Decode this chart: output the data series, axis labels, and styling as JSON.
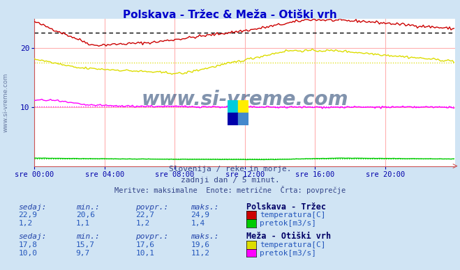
{
  "title": "Polskava - Tržec & Meža - Otiški vrh",
  "title_color": "#0000cc",
  "bg_color": "#d0e4f4",
  "plot_bg_color": "#ffffff",
  "grid_color_h": "#ffb0b0",
  "grid_color_v": "#ffb0b0",
  "x_label_color": "#0000aa",
  "watermark": "www.si-vreme.com",
  "watermark_color": "#1a3a6a",
  "subtitle1": "Slovenija / reke in morje.",
  "subtitle2": "zadnji dan / 5 minut.",
  "subtitle3": "Meritve: maksimalne  Enote: metrične  Črta: povprečje",
  "n_points": 288,
  "x_ticks_pos": [
    0,
    48,
    96,
    144,
    192,
    240
  ],
  "x_tick_labels": [
    "sre 00:00",
    "sre 04:00",
    "sre 08:00",
    "sre 12:00",
    "sre 16:00",
    "sre 20:00"
  ],
  "ylim": [
    0,
    25
  ],
  "y_ticks": [
    10,
    20
  ],
  "color_polskava_temp": "#cc0000",
  "color_polskava_pretok": "#00cc00",
  "color_meza_temp": "#dddd00",
  "color_meza_pretok": "#ff00ff",
  "color_avg_dashed": "#000000",
  "table_header_color": "#2244aa",
  "table_value_color": "#2255bb",
  "table_station_color": "#000066",
  "poly_polskava_temp_color": "#cc0000",
  "poly_meza_temp_color": "#dddd00",
  "subtitle_color": "#334488",
  "left_label_color": "#334477"
}
